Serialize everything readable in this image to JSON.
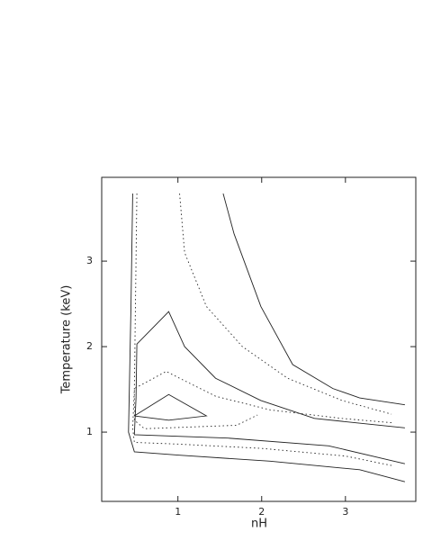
{
  "chart_data": {
    "type": "contour",
    "x_label": "nH",
    "y_label": "Temperature (keV)",
    "xlim": [
      0.09,
      3.84
    ],
    "ylim": [
      0.19,
      3.98
    ],
    "xticks": [
      1,
      2,
      3
    ],
    "yticks": [
      1,
      2,
      3
    ],
    "color": "#222222",
    "series": [
      {
        "style": "solid",
        "x": [
          0.46,
          0.44,
          0.41,
          0.48,
          1.02,
          2.1,
          3.17,
          3.71
        ],
        "y": [
          3.79,
          2.5,
          1.0,
          0.77,
          0.73,
          0.66,
          0.56,
          0.42
        ]
      },
      {
        "style": "dotted",
        "x": [
          0.51,
          0.48,
          0.46,
          0.48,
          1.0,
          2.0,
          3.0,
          3.55
        ],
        "y": [
          3.79,
          1.5,
          1.05,
          0.88,
          0.86,
          0.81,
          0.72,
          0.61
        ]
      },
      {
        "style": "solid",
        "x": [
          3.71,
          2.8,
          1.6,
          0.48,
          0.5,
          0.51,
          0.89,
          1.08,
          1.45,
          1.99,
          2.63,
          3.71
        ],
        "y": [
          0.63,
          0.84,
          0.93,
          0.97,
          1.4,
          2.03,
          2.41,
          2.0,
          1.63,
          1.37,
          1.16,
          1.05
        ]
      },
      {
        "style": "dotted",
        "x": [
          3.55,
          2.96,
          2.1,
          1.45,
          1.02,
          0.86,
          0.48,
          0.48,
          0.6,
          1.7,
          1.95
        ],
        "y": [
          1.11,
          1.16,
          1.26,
          1.42,
          1.63,
          1.71,
          1.51,
          1.14,
          1.04,
          1.08,
          1.2
        ]
      },
      {
        "style": "dotted",
        "x": [
          1.02,
          1.08,
          1.34,
          1.77,
          2.31,
          2.96,
          3.55
        ],
        "y": [
          3.79,
          3.1,
          2.47,
          2.0,
          1.63,
          1.37,
          1.21
        ]
      },
      {
        "style": "solid",
        "x": [
          1.54,
          1.67,
          1.99,
          2.37,
          2.85,
          3.17,
          3.71
        ],
        "y": [
          3.79,
          3.32,
          2.47,
          1.79,
          1.51,
          1.4,
          1.32
        ]
      },
      {
        "style": "solid",
        "x": [
          0.48,
          0.89,
          1.34,
          0.89,
          0.48
        ],
        "y": [
          1.19,
          1.44,
          1.19,
          1.14,
          1.19
        ]
      }
    ]
  }
}
